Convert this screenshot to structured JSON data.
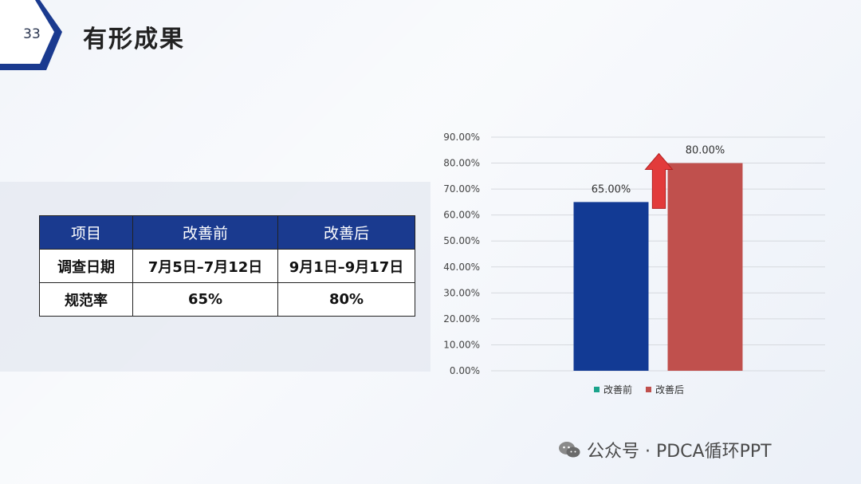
{
  "header": {
    "page_number": "33",
    "title": "有形成果"
  },
  "table": {
    "headers": [
      "项目",
      "改善前",
      "改善后"
    ],
    "rows": [
      [
        "调查日期",
        "7月5日–7月12日",
        "9月1日–9月17日"
      ],
      [
        "规范率",
        "65%",
        "80%"
      ]
    ]
  },
  "chart_data": {
    "type": "bar",
    "categories": [
      "改善前",
      "改善后"
    ],
    "values": [
      65,
      80
    ],
    "data_labels": [
      "65.00%",
      "80.00%"
    ],
    "colors": [
      "#123a94",
      "#c0504d"
    ],
    "legend_colors": [
      "#1aa38b",
      "#c0504d"
    ],
    "legend": [
      "改善前",
      "改善后"
    ],
    "legend_position": "bottom",
    "ylim": [
      0,
      90
    ],
    "yticks": [
      "0.00%",
      "10.00%",
      "20.00%",
      "30.00%",
      "40.00%",
      "50.00%",
      "60.00%",
      "70.00%",
      "80.00%",
      "90.00%"
    ],
    "grid": true,
    "annotation": "up-arrow",
    "annotation_color": "#e23b3b"
  },
  "watermark": {
    "text": "公众号 · PDCA循环PPT",
    "icon": "wechat-icon"
  }
}
